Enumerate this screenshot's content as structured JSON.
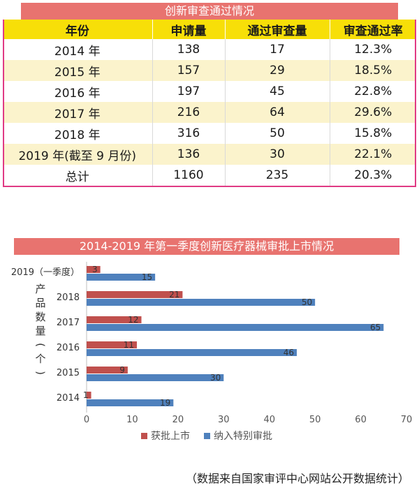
{
  "table": {
    "title": "创新审查通过情况",
    "headers": [
      "年份",
      "申请量",
      "通过审查量",
      "审查通过率"
    ],
    "rows": [
      [
        "2014 年",
        "138",
        "17",
        "12.3%"
      ],
      [
        "2015 年",
        "157",
        "29",
        "18.5%"
      ],
      [
        "2016 年",
        "197",
        "45",
        "22.8%"
      ],
      [
        "2017 年",
        "216",
        "64",
        "29.6%"
      ],
      [
        "2018 年",
        "316",
        "50",
        "15.8%"
      ],
      [
        "2019 年(截至 9 月份)",
        "136",
        "30",
        "22.1%"
      ],
      [
        "总计",
        "1160",
        "235",
        "20.3%"
      ]
    ]
  },
  "chart_data": {
    "type": "bar",
    "orientation": "horizontal",
    "title": "2014-2019 年第一季度创新医疗器械审批上市情况",
    "categories": [
      "2019（一季度）",
      "2018",
      "2017",
      "2016",
      "2015",
      "2014"
    ],
    "ylabel": "产品数量(个)",
    "xlim": [
      0,
      70
    ],
    "xticks": [
      0,
      10,
      20,
      30,
      40,
      50,
      60,
      70
    ],
    "series": [
      {
        "name": "获批上市",
        "values": [
          3,
          21,
          12,
          11,
          9,
          1
        ],
        "color": "#c0504d"
      },
      {
        "name": "纳入特别审批",
        "values": [
          15,
          50,
          65,
          46,
          30,
          19
        ],
        "color": "#4f81bd"
      }
    ],
    "legend": "bottom",
    "grid": false
  },
  "source": "（数据来自国家审评中心网站公开数据统计）"
}
